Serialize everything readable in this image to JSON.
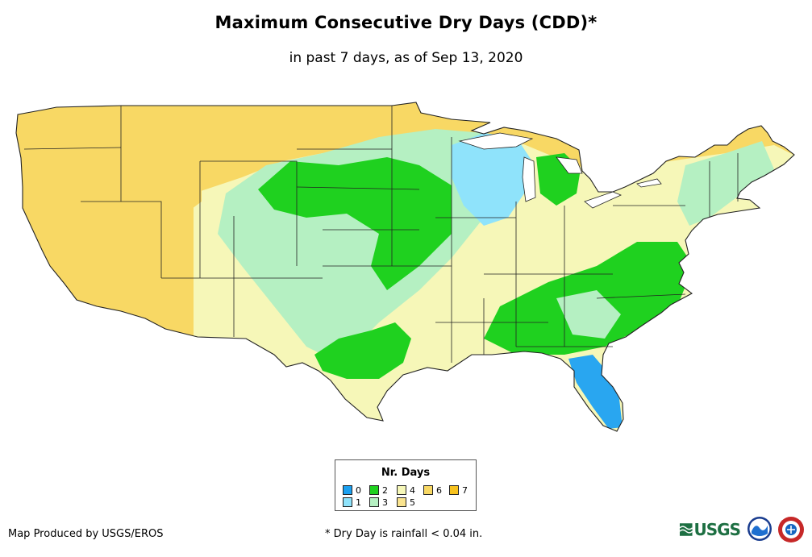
{
  "map": {
    "title": "Maximum Consecutive Dry Days (CDD)*",
    "subtitle": "in past 7 days, as of Sep 13, 2020",
    "region": "Contiguous United States",
    "colors": {
      "ocean": "#ffffff",
      "border": "#222222",
      "d0": "#29a6f0",
      "d1": "#8fe3fb",
      "d2": "#1fd11f",
      "d3": "#b5f0c2",
      "d4": "#f6f7b8",
      "d5": "#fae48f",
      "d6": "#f8d864",
      "d7": "#f7c21e"
    },
    "regions": [
      {
        "name": "pacific-northwest",
        "days": 6
      },
      {
        "name": "california-great-basin",
        "days": 6
      },
      {
        "name": "montana-wyoming",
        "days": 6
      },
      {
        "name": "southwest",
        "days": 6
      },
      {
        "name": "south-plains",
        "days": 4
      },
      {
        "name": "central-plains",
        "days": 3
      },
      {
        "name": "upper-midwest",
        "days": 2
      },
      {
        "name": "wisconsin-michigan",
        "days": 1
      },
      {
        "name": "florida",
        "days": 0
      },
      {
        "name": "southeast",
        "days": 2
      },
      {
        "name": "ohio-valley",
        "days": 4
      },
      {
        "name": "northeast",
        "days": 4
      }
    ]
  },
  "legend": {
    "title": "Nr. Days",
    "items": [
      {
        "label": "0",
        "color": "#1ba0f0"
      },
      {
        "label": "1",
        "color": "#8fe3fb"
      },
      {
        "label": "2",
        "color": "#1fd11f"
      },
      {
        "label": "3",
        "color": "#b5f0c2"
      },
      {
        "label": "4",
        "color": "#f6f7b8"
      },
      {
        "label": "5",
        "color": "#fae48f"
      },
      {
        "label": "6",
        "color": "#f8d864"
      },
      {
        "label": "7",
        "color": "#f7c21e"
      }
    ]
  },
  "footer": {
    "credit": "Map Produced by USGS/EROS",
    "footnote": "* Dry Day is rainfall < 0.04 in.",
    "logos": [
      {
        "name": "usgs-logo",
        "text": "USGS"
      },
      {
        "name": "noaa-logo"
      },
      {
        "name": "nws-logo"
      }
    ]
  }
}
